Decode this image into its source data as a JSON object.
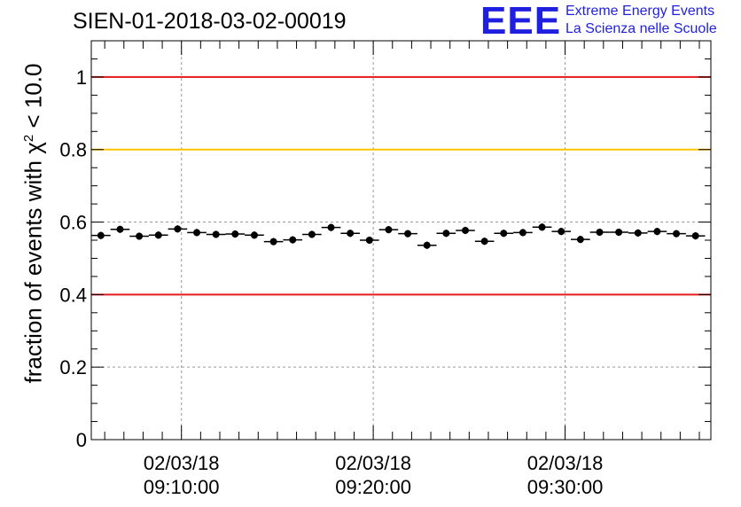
{
  "header": {
    "run_title": "SIEN-01-2018-03-02-00019",
    "logo_mark": "EEE",
    "logo_line1": "Extreme Energy Events",
    "logo_line2": "La Scienza nelle Scuole"
  },
  "colors": {
    "threshold_red": "#e31a1c",
    "threshold_yellow": "#ffc400",
    "markers": "#000000",
    "logo": "#1f1fe0",
    "grid": "#9a9a9a"
  },
  "chart_data": {
    "type": "scatter",
    "title": "SIEN-01-2018-03-02-00019",
    "ylabel": {
      "prefix": "fraction of events with ",
      "symbol": "χ",
      "superscript": "2",
      "suffix": " < 10.0"
    },
    "xlabel": "",
    "ylim": [
      0,
      1.1
    ],
    "xlim_minutes": [
      5.3,
      37.6
    ],
    "grid": true,
    "y_ticks": [
      {
        "value": 0,
        "label": "0"
      },
      {
        "value": 0.2,
        "label": "0.2"
      },
      {
        "value": 0.4,
        "label": "0.4"
      },
      {
        "value": 0.6,
        "label": "0.6"
      },
      {
        "value": 0.8,
        "label": "0.8"
      },
      {
        "value": 1,
        "label": "1"
      }
    ],
    "x_ticks": [
      {
        "minutes": 10,
        "date": "02/03/18",
        "time": "09:10:00"
      },
      {
        "minutes": 20,
        "date": "02/03/18",
        "time": "09:20:00"
      },
      {
        "minutes": 30,
        "date": "02/03/18",
        "time": "09:30:00"
      }
    ],
    "reference_lines": [
      {
        "value": 1.0,
        "color": "red"
      },
      {
        "value": 0.8,
        "color": "yellow"
      },
      {
        "value": 0.4,
        "color": "red"
      }
    ],
    "series": [
      {
        "name": "fraction",
        "bin_width_minutes": 1,
        "x_minutes": [
          5.8,
          6.8,
          7.8,
          8.8,
          9.8,
          10.8,
          11.8,
          12.8,
          13.8,
          14.8,
          15.8,
          16.8,
          17.8,
          18.8,
          19.8,
          20.8,
          21.8,
          22.8,
          23.8,
          24.8,
          25.8,
          26.8,
          27.8,
          28.8,
          29.8,
          30.8,
          31.8,
          32.8,
          33.8,
          34.8,
          35.8,
          36.8
        ],
        "values": [
          0.563,
          0.58,
          0.561,
          0.564,
          0.581,
          0.571,
          0.566,
          0.567,
          0.564,
          0.546,
          0.551,
          0.566,
          0.585,
          0.569,
          0.55,
          0.579,
          0.568,
          0.536,
          0.569,
          0.577,
          0.547,
          0.569,
          0.571,
          0.586,
          0.574,
          0.552,
          0.572,
          0.572,
          0.57,
          0.574,
          0.568,
          0.562
        ],
        "errors": [
          0.01,
          0.01,
          0.01,
          0.01,
          0.01,
          0.01,
          0.01,
          0.01,
          0.01,
          0.01,
          0.01,
          0.01,
          0.01,
          0.01,
          0.01,
          0.01,
          0.01,
          0.01,
          0.01,
          0.01,
          0.01,
          0.01,
          0.01,
          0.01,
          0.01,
          0.01,
          0.01,
          0.01,
          0.01,
          0.01,
          0.01,
          0.01
        ]
      }
    ]
  }
}
